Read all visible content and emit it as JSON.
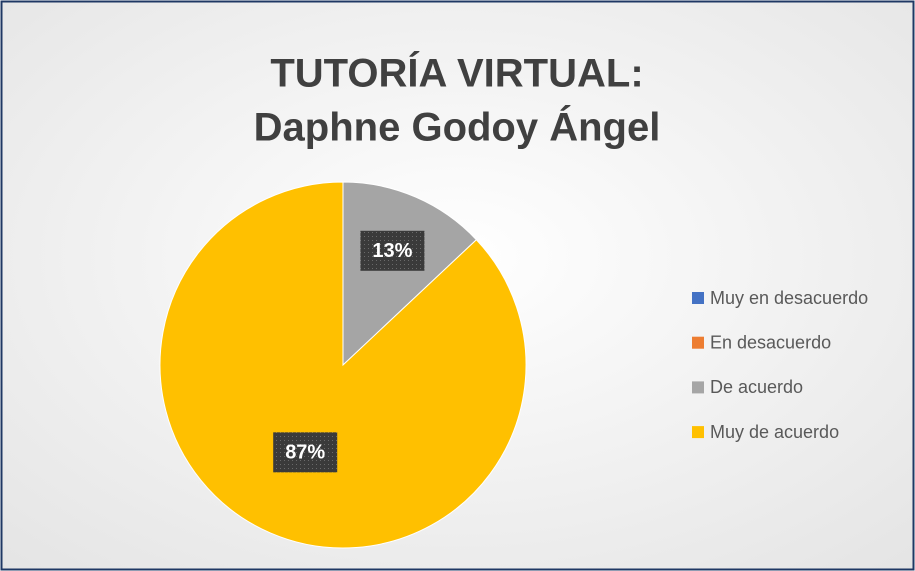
{
  "chart_data": {
    "type": "pie",
    "title": [
      "TUTORÍA VIRTUAL:",
      "Daphne Godoy Ángel"
    ],
    "categories": [
      "Muy en desacuerdo",
      "En desacuerdo",
      "De acuerdo",
      "Muy de acuerdo"
    ],
    "values": [
      0,
      0,
      13,
      87
    ],
    "value_labels": [
      null,
      null,
      "13%",
      "87%"
    ],
    "colors": [
      "#4472c4",
      "#ed7d31",
      "#a5a5a5",
      "#ffc000"
    ],
    "legend": "right"
  }
}
